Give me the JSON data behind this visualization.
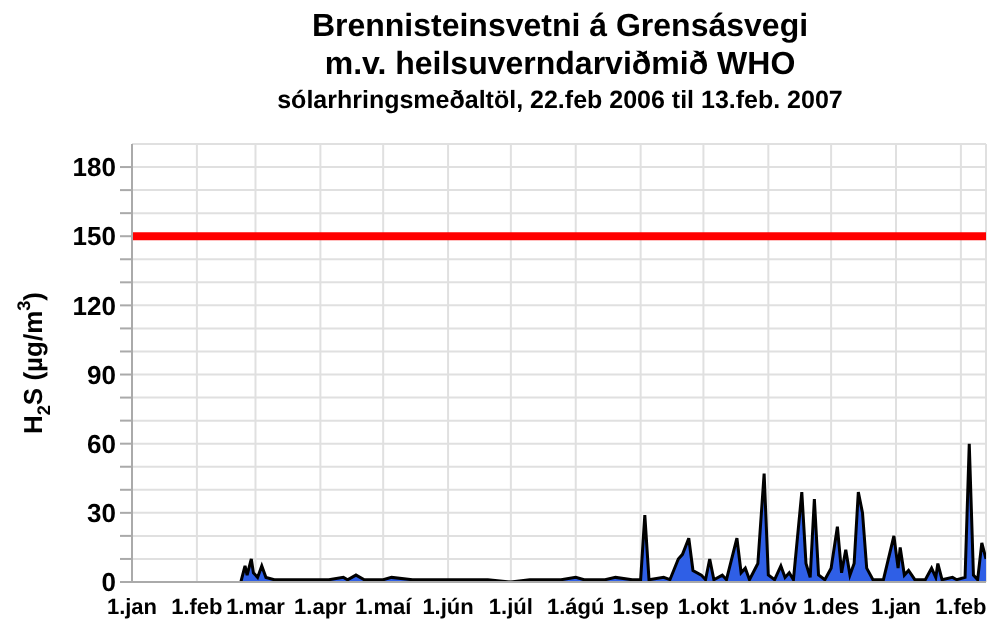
{
  "chart_data": {
    "type": "area",
    "title": "Brennisteinsvetni á Grensásvegi\nm.v. heilsuverndarviðmið WHO",
    "subtitle": "sólarhringsmeðaltöl, 22.feb 2006 til 13.feb. 2007",
    "ylabel": "H$_{2}$S (µg/m$^{3}$)",
    "xlim": [
      "2006-01-01",
      "2007-02-13"
    ],
    "xticks": [
      {
        "value": "2006-01-01",
        "label": "1.jan"
      },
      {
        "value": "2006-02-01",
        "label": "1.feb"
      },
      {
        "value": "2006-03-01",
        "label": "1.mar"
      },
      {
        "value": "2006-04-01",
        "label": "1.apr"
      },
      {
        "value": "2006-05-01",
        "label": "1.maí"
      },
      {
        "value": "2006-06-01",
        "label": "1.jún"
      },
      {
        "value": "2006-07-01",
        "label": "1.júl"
      },
      {
        "value": "2006-08-01",
        "label": "1.ágú"
      },
      {
        "value": "2006-09-01",
        "label": "1.sep"
      },
      {
        "value": "2006-10-01",
        "label": "1.okt"
      },
      {
        "value": "2006-11-01",
        "label": "1.nóv"
      },
      {
        "value": "2006-12-01",
        "label": "1.des"
      },
      {
        "value": "2007-01-01",
        "label": "1.jan"
      },
      {
        "value": "2007-02-01",
        "label": "1.feb"
      }
    ],
    "ylim": [
      0,
      190
    ],
    "yticks": [
      0,
      {
        "value": 10,
        "label": null
      },
      {
        "value": 20,
        "label": null
      },
      30,
      {
        "value": 40,
        "label": null
      },
      {
        "value": 50,
        "label": null
      },
      60,
      {
        "value": 70,
        "label": null
      },
      {
        "value": 80,
        "label": null
      },
      90,
      {
        "value": 100,
        "label": null
      },
      {
        "value": 110,
        "label": null
      },
      120,
      {
        "value": 130,
        "label": null
      },
      {
        "value": 140,
        "label": null
      },
      150,
      {
        "value": 160,
        "label": null
      },
      {
        "value": 170,
        "label": null
      },
      180
    ],
    "grid": true,
    "ref_lines": [
      {
        "axis": "y",
        "value": 150,
        "color": "#ff0000"
      }
    ],
    "x": [
      "2006-02-22",
      "2006-02-24",
      "2006-02-25",
      "2006-02-27",
      "2006-02-28",
      "2006-03-02",
      "2006-03-04",
      "2006-03-06",
      "2006-03-10",
      "2006-03-20",
      "2006-04-05",
      "2006-04-12",
      "2006-04-14",
      "2006-04-18",
      "2006-04-22",
      "2006-05-01",
      "2006-05-05",
      "2006-05-15",
      "2006-06-01",
      "2006-06-10",
      "2006-06-20",
      "2006-07-01",
      "2006-07-10",
      "2006-07-25",
      "2006-08-01",
      "2006-08-05",
      "2006-08-15",
      "2006-08-20",
      "2006-08-28",
      "2006-09-01",
      "2006-09-03",
      "2006-09-05",
      "2006-09-12",
      "2006-09-15",
      "2006-09-19",
      "2006-09-21",
      "2006-09-24",
      "2006-09-26",
      "2006-09-30",
      "2006-10-02",
      "2006-10-04",
      "2006-10-06",
      "2006-10-10",
      "2006-10-12",
      "2006-10-17",
      "2006-10-19",
      "2006-10-21",
      "2006-10-23",
      "2006-10-27",
      "2006-10-30",
      "2006-11-01",
      "2006-11-04",
      "2006-11-07",
      "2006-11-09",
      "2006-11-11",
      "2006-11-13",
      "2006-11-17",
      "2006-11-19",
      "2006-11-21",
      "2006-11-23",
      "2006-11-25",
      "2006-11-28",
      "2006-12-01",
      "2006-12-04",
      "2006-12-06",
      "2006-12-08",
      "2006-12-10",
      "2006-12-12",
      "2006-12-14",
      "2006-12-16",
      "2006-12-18",
      "2006-12-21",
      "2006-12-26",
      "2006-12-31",
      "2007-01-02",
      "2007-01-03",
      "2007-01-05",
      "2007-01-07",
      "2007-01-10",
      "2007-01-15",
      "2007-01-18",
      "2007-01-20",
      "2007-01-21",
      "2007-01-23",
      "2007-01-28",
      "2007-01-30",
      "2007-02-03",
      "2007-02-05",
      "2007-02-07",
      "2007-02-09",
      "2007-02-11",
      "2007-02-13"
    ],
    "series": [
      {
        "color": "#2f5fe6",
        "values": [
          0,
          7,
          3,
          10,
          4,
          2,
          7,
          2,
          1,
          1,
          1,
          2,
          1,
          3,
          1,
          1,
          2,
          1,
          1,
          1,
          1,
          0,
          1,
          1,
          2,
          1,
          1,
          2,
          1,
          1,
          29,
          1,
          2,
          1,
          10,
          12,
          19,
          5,
          3,
          1,
          10,
          1,
          3,
          1,
          19,
          4,
          6,
          1,
          8,
          47,
          3,
          1,
          7,
          2,
          4,
          1,
          39,
          8,
          2,
          36,
          3,
          1,
          6,
          24,
          4,
          14,
          3,
          8,
          39,
          30,
          6,
          1,
          1,
          20,
          6,
          15,
          3,
          5,
          1,
          1,
          6,
          2,
          8,
          1,
          2,
          1,
          2,
          60,
          3,
          1,
          17,
          10
        ]
      }
    ]
  }
}
